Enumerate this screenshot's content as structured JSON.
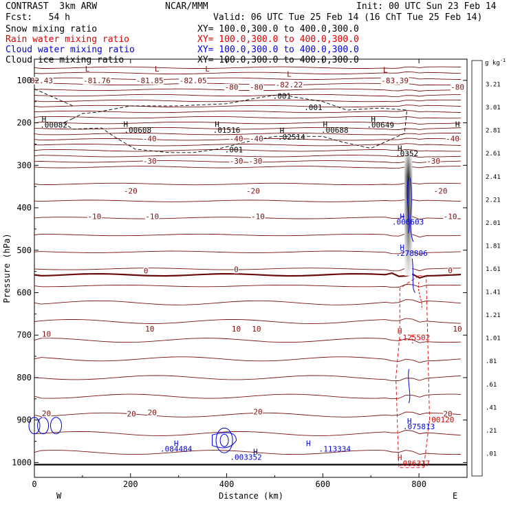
{
  "header": {
    "title": "CONTRAST  3km ARW",
    "org": "NCAR/MMM",
    "init": "Init: 00 UTC Sun 23 Feb 14",
    "fcst": "Fcst:   54 h",
    "valid": "Valid: 06 UTC Tue 25 Feb 14 (16 ChT Tue 25 Feb 14)",
    "fields": [
      {
        "name": "Snow mixing ratio",
        "xy": "XY= 100.0,300.0 to 400.0,300.0",
        "color": "#000000"
      },
      {
        "name": "Rain water mixing ratio",
        "xy": "XY= 100.0,300.0 to 400.0,300.0",
        "color": "#dd0000"
      },
      {
        "name": "Cloud water mixing ratio",
        "xy": "XY= 100.0,300.0 to 400.0,300.0",
        "color": "#0000dd"
      },
      {
        "name": "Cloud ice mixing ratio",
        "xy": "XY= 100.0,300.0 to 400.0,300.0",
        "color": "#000000"
      }
    ]
  },
  "chart_data": {
    "type": "contour-cross-section",
    "ylabel": "Pressure (hPa)",
    "xlabel": "Distance (km)",
    "x_ticks": [
      0,
      200,
      400,
      600,
      800
    ],
    "y_ticks": [
      100,
      200,
      300,
      400,
      500,
      600,
      700,
      800,
      900,
      1000
    ],
    "xlim": [
      0,
      900
    ],
    "ylim": [
      50,
      1035
    ],
    "left_end": "W",
    "right_end": "E",
    "colorbar": {
      "unit": "g kg",
      "unit_exp": "-1",
      "levels": [
        "3.21",
        "3.01",
        "2.81",
        "2.61",
        "2.41",
        "2.21",
        "2.01",
        "1.81",
        "1.61",
        "1.41",
        "1.21",
        "1.01",
        ".81",
        ".61",
        ".41",
        ".21",
        ".01"
      ]
    },
    "temperature_labels": [
      {
        "x": 125,
        "p": 420,
        "text": "-10"
      },
      {
        "x": 245,
        "p": 420,
        "text": "-10"
      },
      {
        "x": 465,
        "p": 420,
        "text": "-10"
      },
      {
        "x": 865,
        "p": 420,
        "text": "-10"
      },
      {
        "x": 200,
        "p": 360,
        "text": "-20"
      },
      {
        "x": 455,
        "p": 360,
        "text": "-20"
      },
      {
        "x": 845,
        "p": 360,
        "text": "-20"
      },
      {
        "x": 240,
        "p": 290,
        "text": "-30"
      },
      {
        "x": 420,
        "p": 290,
        "text": "-30"
      },
      {
        "x": 460,
        "p": 290,
        "text": "-30"
      },
      {
        "x": 830,
        "p": 290,
        "text": "-30"
      },
      {
        "x": 240,
        "p": 237,
        "text": "-40"
      },
      {
        "x": 420,
        "p": 237,
        "text": "-40"
      },
      {
        "x": 462,
        "p": 237,
        "text": "-40"
      },
      {
        "x": 870,
        "p": 237,
        "text": "-40"
      },
      {
        "x": 410,
        "p": 116,
        "text": "-80"
      },
      {
        "x": 462,
        "p": 116,
        "text": "-80"
      },
      {
        "x": 880,
        "p": 116,
        "text": "-80"
      },
      {
        "x": 232,
        "p": 548,
        "text": "0"
      },
      {
        "x": 420,
        "p": 545,
        "text": "0"
      },
      {
        "x": 865,
        "p": 547,
        "text": "0"
      },
      {
        "x": 25,
        "p": 697,
        "text": "10"
      },
      {
        "x": 240,
        "p": 685,
        "text": "10"
      },
      {
        "x": 420,
        "p": 685,
        "text": "10"
      },
      {
        "x": 462,
        "p": 685,
        "text": "10"
      },
      {
        "x": 880,
        "p": 685,
        "text": "10"
      },
      {
        "x": 25,
        "p": 884,
        "text": "20"
      },
      {
        "x": 202,
        "p": 885,
        "text": "20"
      },
      {
        "x": 245,
        "p": 882,
        "text": "20"
      },
      {
        "x": 465,
        "p": 880,
        "text": "20"
      },
      {
        "x": 860,
        "p": 885,
        "text": "20"
      },
      {
        "x": 130,
        "p": 100,
        "text": "-81.76"
      },
      {
        "x": 240,
        "p": 100,
        "text": "-81.85"
      },
      {
        "x": 330,
        "p": 100,
        "text": "-82.05"
      },
      {
        "x": 530,
        "p": 110,
        "text": "-82.22"
      },
      {
        "x": 750,
        "p": 100,
        "text": "-83.39"
      },
      {
        "x": 15,
        "p": 100,
        "text": "82.43"
      }
    ],
    "maxima_labels": [
      {
        "x": 40,
        "p": 205,
        "text": ".00082",
        "color": "black"
      },
      {
        "x": 215,
        "p": 217,
        "text": ".00608",
        "color": "black"
      },
      {
        "x": 400,
        "p": 217,
        "text": ".01516",
        "color": "black"
      },
      {
        "x": 535,
        "p": 233,
        "text": ".02514",
        "color": "black"
      },
      {
        "x": 625,
        "p": 217,
        "text": ".00688",
        "color": "black"
      },
      {
        "x": 720,
        "p": 205,
        "text": ".00649",
        "color": "black"
      },
      {
        "x": 775,
        "p": 272,
        "text": ".0352",
        "color": "black"
      },
      {
        "x": 580,
        "p": 163,
        "text": ".001",
        "color": "black"
      },
      {
        "x": 515,
        "p": 137,
        "text": ".001",
        "color": "black"
      },
      {
        "x": 415,
        "p": 263,
        "text": ".001",
        "color": "black"
      },
      {
        "x": 777,
        "p": 433,
        "text": ".006603",
        "color": "blue"
      },
      {
        "x": 785,
        "p": 507,
        "text": ".278806",
        "color": "blue"
      },
      {
        "x": 790,
        "p": 705,
        "text": ".125502",
        "color": "red"
      },
      {
        "x": 800,
        "p": 915,
        "text": ".075813",
        "color": "blue"
      },
      {
        "x": 845,
        "p": 899,
        "text": ".00120",
        "color": "red"
      },
      {
        "x": 295,
        "p": 968,
        "text": ".084484",
        "color": "blue"
      },
      {
        "x": 440,
        "p": 987,
        "text": ".003352",
        "color": "blue"
      },
      {
        "x": 625,
        "p": 968,
        "text": ".113334",
        "color": "blue"
      },
      {
        "x": 790,
        "p": 1002,
        "text": ".086317",
        "color": "red"
      }
    ],
    "lows": [
      {
        "x": 110,
        "p": 73
      },
      {
        "x": 255,
        "p": 73
      },
      {
        "x": 360,
        "p": 73
      },
      {
        "x": 530,
        "p": 85
      },
      {
        "x": 730,
        "p": 75
      }
    ],
    "highs_black": [
      {
        "x": 20,
        "p": 191
      },
      {
        "x": 190,
        "p": 203
      },
      {
        "x": 380,
        "p": 203
      },
      {
        "x": 515,
        "p": 218
      },
      {
        "x": 605,
        "p": 203
      },
      {
        "x": 705,
        "p": 191
      },
      {
        "x": 760,
        "p": 260
      },
      {
        "x": 880,
        "p": 203
      }
    ],
    "highs_blue": [
      {
        "x": 765,
        "p": 420
      },
      {
        "x": 765,
        "p": 493
      },
      {
        "x": 780,
        "p": 902
      },
      {
        "x": 295,
        "p": 955
      },
      {
        "x": 460,
        "p": 974
      },
      {
        "x": 570,
        "p": 955
      }
    ],
    "highs_red": [
      {
        "x": 760,
        "p": 690
      },
      {
        "x": 760,
        "p": 988
      }
    ]
  }
}
